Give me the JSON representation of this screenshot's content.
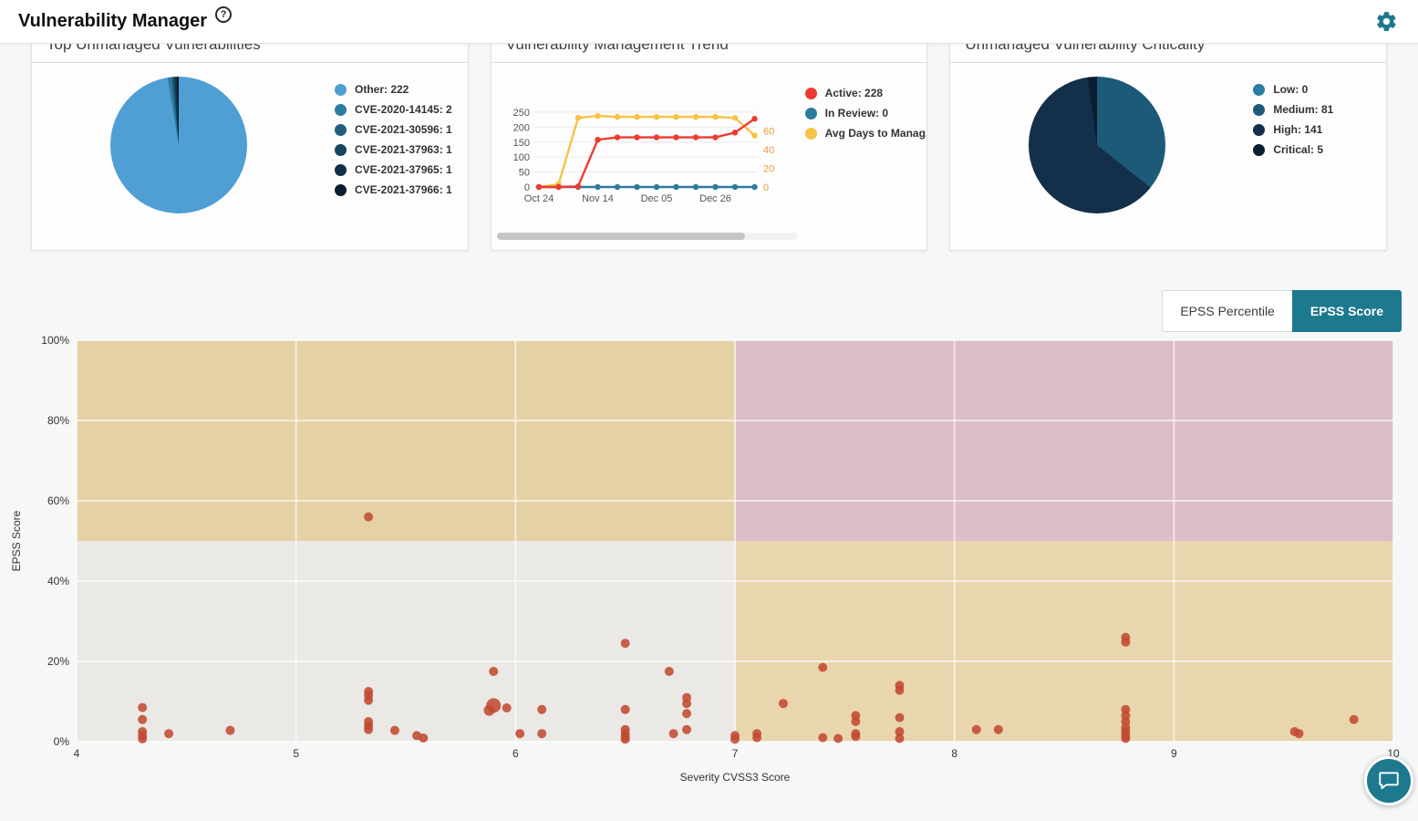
{
  "header": {
    "title": "Vulnerability Manager",
    "help_glyph": "?"
  },
  "accent_color": "#1d7a8e",
  "cards": {
    "top_unmanaged": {
      "title": "Top Unmanaged Vulnerabilities",
      "chart_data": {
        "type": "pie",
        "labels": [
          "Other",
          "CVE-2020-14145",
          "CVE-2021-30596",
          "CVE-2021-37963",
          "CVE-2021-37965",
          "CVE-2021-37966"
        ],
        "values": [
          222,
          2,
          1,
          1,
          1,
          1
        ],
        "legend": [
          "Other: 222",
          "CVE-2020-14145: 2",
          "CVE-2021-30596: 1",
          "CVE-2021-37963: 1",
          "CVE-2021-37965: 1",
          "CVE-2021-37966: 1"
        ],
        "colors": [
          "#4f9fd4",
          "#2d7ca3",
          "#20607f",
          "#17455f",
          "#0f3046",
          "#091e2e"
        ]
      }
    },
    "trend": {
      "title": "Vulnerability Management Trend",
      "chart_data": {
        "type": "line",
        "x_labels": [
          "Oct 24",
          "Nov 14",
          "Dec 05",
          "Dec 26"
        ],
        "left_ticks": [
          250,
          200,
          150,
          100,
          50,
          0
        ],
        "right_ticks": [
          60,
          40,
          20,
          0
        ],
        "left_range": [
          0,
          250
        ],
        "right_range": [
          0,
          80
        ],
        "legend": [
          "Active: 228",
          "In Review: 0",
          "Avg Days to Manag..."
        ],
        "legend_colors": [
          "#ee3b30",
          "#2c7c9c",
          "#f6c344"
        ],
        "series": {
          "active": [
            0,
            0,
            2,
            158,
            166,
            166,
            166,
            166,
            166,
            166,
            182,
            228
          ],
          "in_review": [
            0,
            0,
            0,
            0,
            0,
            0,
            0,
            0,
            0,
            0,
            0,
            0
          ],
          "avg_days": [
            0,
            3,
            74,
            76,
            75,
            75,
            75,
            75,
            75,
            75,
            74,
            55
          ]
        }
      }
    },
    "criticality": {
      "title": "Unmanaged Vulnerability Criticality",
      "chart_data": {
        "type": "pie",
        "labels": [
          "Low",
          "Medium",
          "High",
          "Critical"
        ],
        "values": [
          0,
          81,
          141,
          5
        ],
        "legend": [
          "Low: 0",
          "Medium: 81",
          "High: 141",
          "Critical: 5"
        ],
        "colors": [
          "#2d7ca3",
          "#1d5a78",
          "#132f4a",
          "#0a1d31"
        ]
      }
    }
  },
  "toggle": {
    "options": [
      {
        "label": "EPSS Percentile",
        "active": false
      },
      {
        "label": "EPSS Score",
        "active": true
      }
    ]
  },
  "scatter": {
    "chart_data": {
      "type": "scatter",
      "xlabel": "Severity CVSS3 Score",
      "ylabel": "EPSS Score",
      "xlim": [
        4,
        10
      ],
      "ylim": [
        0,
        100
      ],
      "x_ticks": [
        4,
        5,
        6,
        7,
        8,
        9,
        10
      ],
      "y_ticks": [
        "100%",
        "80%",
        "60%",
        "40%",
        "20%",
        "0%"
      ],
      "point_color": "#c14a31",
      "quadrant_colors": {
        "top_left": "#e6d1a6",
        "top_right": "#dcbdc9",
        "bottom_left": "#eae9e6",
        "bottom_right": "#e9d6ae"
      },
      "points": [
        [
          4.3,
          8.5
        ],
        [
          4.3,
          5.5
        ],
        [
          4.3,
          2.5
        ],
        [
          4.3,
          1.5
        ],
        [
          4.3,
          0.7
        ],
        [
          4.42,
          2
        ],
        [
          4.7,
          2.8
        ],
        [
          5.33,
          56
        ],
        [
          5.33,
          12.5
        ],
        [
          5.33,
          11.5
        ],
        [
          5.33,
          10.3
        ],
        [
          5.33,
          5
        ],
        [
          5.33,
          4
        ],
        [
          5.33,
          3
        ],
        [
          5.45,
          2.8
        ],
        [
          5.55,
          1.5
        ],
        [
          5.58,
          0.9
        ],
        [
          5.9,
          17.5
        ],
        [
          5.9,
          9,
          8
        ],
        [
          5.88,
          7.8,
          6
        ],
        [
          5.96,
          8.4
        ],
        [
          6.02,
          2
        ],
        [
          6.12,
          8
        ],
        [
          6.12,
          2
        ],
        [
          6.5,
          24.5
        ],
        [
          6.5,
          8
        ],
        [
          6.5,
          3
        ],
        [
          6.5,
          2
        ],
        [
          6.5,
          1.2
        ],
        [
          6.5,
          0.6
        ],
        [
          6.7,
          17.5
        ],
        [
          6.72,
          2
        ],
        [
          6.78,
          11
        ],
        [
          6.78,
          9.5
        ],
        [
          6.78,
          7
        ],
        [
          6.78,
          3
        ],
        [
          7.0,
          1.5
        ],
        [
          7.0,
          0.6
        ],
        [
          7.1,
          2
        ],
        [
          7.1,
          1
        ],
        [
          7.22,
          9.5
        ],
        [
          7.4,
          18.5
        ],
        [
          7.4,
          1
        ],
        [
          7.47,
          0.8
        ],
        [
          7.55,
          6.5
        ],
        [
          7.55,
          5
        ],
        [
          7.55,
          2
        ],
        [
          7.55,
          1.3
        ],
        [
          7.75,
          14
        ],
        [
          7.75,
          12.8
        ],
        [
          7.75,
          6
        ],
        [
          7.75,
          2.5
        ],
        [
          7.75,
          0.8
        ],
        [
          8.1,
          3
        ],
        [
          8.2,
          3
        ],
        [
          8.78,
          26
        ],
        [
          8.78,
          24.8
        ],
        [
          8.78,
          8
        ],
        [
          8.78,
          6.5
        ],
        [
          8.78,
          5
        ],
        [
          8.78,
          3.5
        ],
        [
          8.78,
          2.5
        ],
        [
          8.78,
          1.5
        ],
        [
          8.78,
          0.8
        ],
        [
          9.55,
          2.5
        ],
        [
          9.57,
          2
        ],
        [
          9.82,
          5.5
        ]
      ]
    }
  }
}
